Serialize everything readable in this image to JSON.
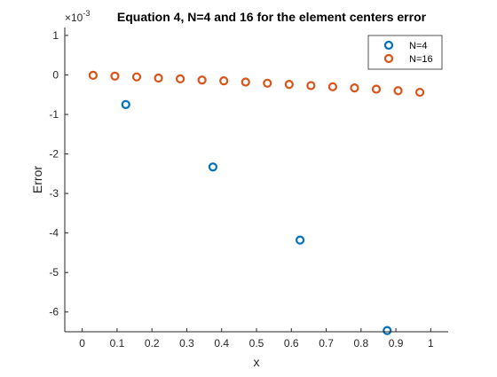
{
  "chart_data": {
    "type": "scatter",
    "title": "Equation 4, N=4 and 16 for the element centers error",
    "xlabel": "x",
    "ylabel": "Error",
    "y_exponent_label": "×10",
    "y_exponent_power": "-3",
    "xlim": [
      -0.05,
      1.05
    ],
    "ylim": [
      -6.5,
      1.2
    ],
    "x_ticks": [
      0,
      0.1,
      0.2,
      0.3,
      0.4,
      0.5,
      0.6,
      0.7,
      0.8,
      0.9,
      1
    ],
    "x_tick_labels": [
      "0",
      "0.1",
      "0.2",
      "0.3",
      "0.4",
      "0.5",
      "0.6",
      "0.7",
      "0.8",
      "0.9",
      "1"
    ],
    "y_ticks": [
      -6,
      -5,
      -4,
      -3,
      -2,
      -1,
      0,
      1
    ],
    "y_tick_labels": [
      "-6",
      "-5",
      "-4",
      "-3",
      "-2",
      "-1",
      "0",
      "1"
    ],
    "legend_position": "top-right",
    "grid": false,
    "series": [
      {
        "name": "N=4",
        "color": "#0072BD",
        "marker": "circle-open",
        "x": [
          0.125,
          0.375,
          0.625,
          0.875
        ],
        "y": [
          -0.75,
          -2.33,
          -4.18,
          -6.47
        ]
      },
      {
        "name": "N=16",
        "color": "#D95319",
        "marker": "circle-open",
        "x": [
          0.03125,
          0.09375,
          0.15625,
          0.21875,
          0.28125,
          0.34375,
          0.40625,
          0.46875,
          0.53125,
          0.59375,
          0.65625,
          0.71875,
          0.78125,
          0.84375,
          0.90625,
          0.96875
        ],
        "y": [
          -0.01,
          -0.03,
          -0.05,
          -0.08,
          -0.1,
          -0.13,
          -0.15,
          -0.18,
          -0.21,
          -0.24,
          -0.27,
          -0.3,
          -0.33,
          -0.36,
          -0.4,
          -0.44
        ]
      }
    ]
  }
}
